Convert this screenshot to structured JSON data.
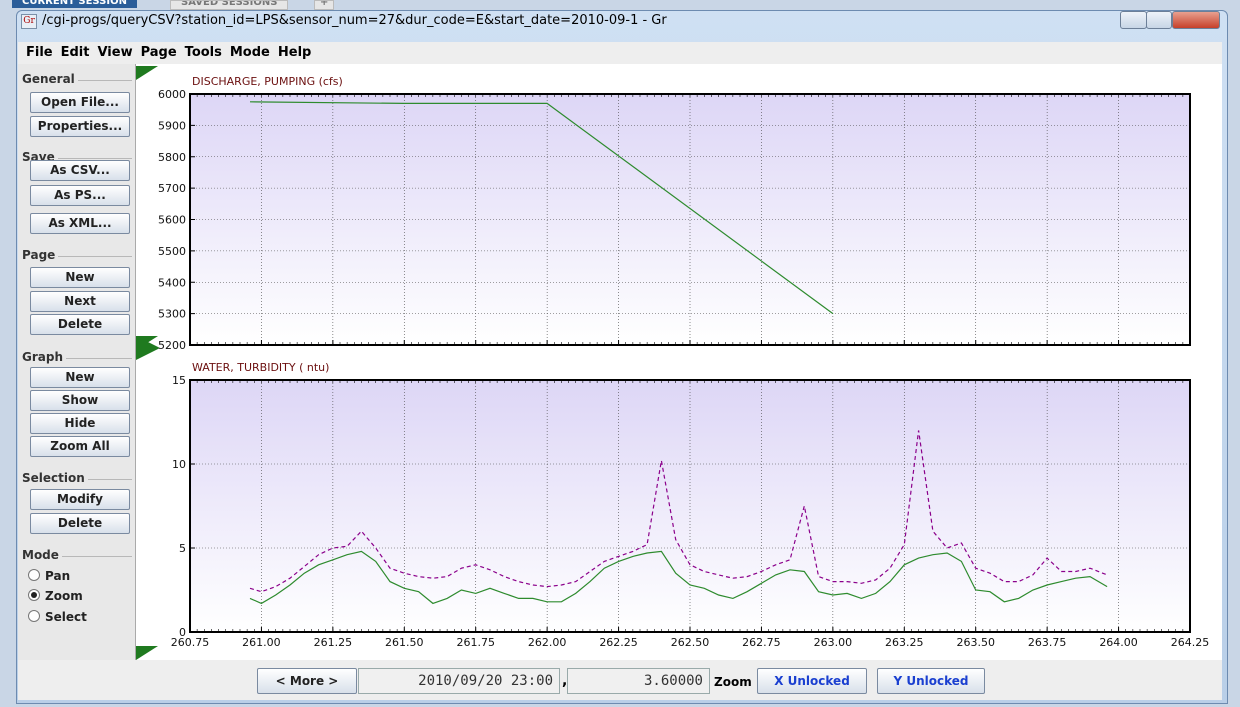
{
  "tabs": [
    "CURRENT SESSION",
    "SAVED SESSIONS",
    "+"
  ],
  "window": {
    "icon": "Gr",
    "title": "/cgi-progs/queryCSV?station_id=LPS&sensor_num=27&dur_code=E&start_date=2010-09-1 - Gr"
  },
  "menu": [
    "File",
    "Edit",
    "View",
    "Page",
    "Tools",
    "Mode",
    "Help"
  ],
  "sidebar": {
    "groups": [
      {
        "label": "General",
        "buttons": [
          "Open File...",
          "Properties..."
        ]
      },
      {
        "label": "Save",
        "buttons": [
          "As CSV...",
          "As PS...",
          "As XML..."
        ]
      },
      {
        "label": "Page",
        "buttons": [
          "New",
          "Next",
          "Delete"
        ]
      },
      {
        "label": "Graph",
        "buttons": [
          "New",
          "Show",
          "Hide",
          "Zoom All"
        ]
      },
      {
        "label": "Selection",
        "buttons": [
          "Modify",
          "Delete"
        ]
      }
    ],
    "mode": {
      "label": "Mode",
      "options": [
        "Pan",
        "Zoom",
        "Select"
      ],
      "selected": 1
    }
  },
  "bottom_bar": {
    "more": "< More >",
    "date": "2010/09/20 23:00",
    "separator": ",",
    "value": "3.60000",
    "mode": "Zoom",
    "x_lock": "X Unlocked",
    "y_lock": "Y Unlocked"
  },
  "chart_data": [
    {
      "type": "line",
      "title": "DISCHARGE, PUMPING (cfs)",
      "x": [
        260.96,
        261.5,
        262.0,
        263.0
      ],
      "series": [
        {
          "color": "#2e8b2e",
          "values": [
            5975,
            5970,
            5970,
            5300
          ]
        }
      ],
      "xlim": [
        260.75,
        264.25
      ],
      "xticks": [
        261,
        261.25,
        261.5,
        261.75,
        262,
        262.25,
        262.5,
        262.75,
        263,
        263.25,
        263.5,
        263.75,
        264
      ],
      "ylim": [
        5200,
        6000
      ],
      "yticks": [
        5200,
        5300,
        5400,
        5500,
        5600,
        5700,
        5800,
        5900,
        6000
      ],
      "grid": true
    },
    {
      "type": "line",
      "title": "WATER, TURBIDITY ( ntu)",
      "x": [
        260.96,
        261.0,
        261.05,
        261.1,
        261.15,
        261.2,
        261.25,
        261.3,
        261.35,
        261.4,
        261.45,
        261.5,
        261.55,
        261.6,
        261.65,
        261.7,
        261.75,
        261.8,
        261.85,
        261.9,
        261.95,
        262.0,
        262.05,
        262.1,
        262.15,
        262.2,
        262.25,
        262.3,
        262.35,
        262.4,
        262.45,
        262.5,
        262.55,
        262.6,
        262.65,
        262.7,
        262.75,
        262.8,
        262.85,
        262.9,
        262.95,
        263.0,
        263.05,
        263.1,
        263.15,
        263.2,
        263.25,
        263.3,
        263.35,
        263.4,
        263.45,
        263.5,
        263.55,
        263.6,
        263.65,
        263.7,
        263.75,
        263.8,
        263.85,
        263.9,
        263.96
      ],
      "series": [
        {
          "color": "#8b008b",
          "dashed": true,
          "values": [
            2.6,
            2.4,
            2.7,
            3.2,
            3.9,
            4.6,
            5.0,
            5.1,
            6.0,
            5.0,
            3.8,
            3.5,
            3.3,
            3.2,
            3.3,
            3.8,
            4.0,
            3.7,
            3.3,
            3.0,
            2.8,
            2.7,
            2.8,
            3.0,
            3.6,
            4.2,
            4.5,
            4.8,
            5.2,
            10.2,
            5.5,
            4.0,
            3.6,
            3.4,
            3.2,
            3.3,
            3.6,
            4.0,
            4.3,
            7.5,
            3.3,
            3.0,
            3.0,
            2.9,
            3.1,
            3.8,
            5.2,
            12.0,
            6.0,
            5.0,
            5.3,
            3.8,
            3.5,
            3.0,
            3.0,
            3.4,
            4.4,
            3.6,
            3.6,
            3.8,
            3.4
          ]
        },
        {
          "color": "#2e8b2e",
          "values": [
            2.0,
            1.7,
            2.2,
            2.8,
            3.5,
            4.0,
            4.3,
            4.6,
            4.8,
            4.2,
            3.0,
            2.6,
            2.4,
            1.7,
            2.0,
            2.5,
            2.3,
            2.6,
            2.3,
            2.0,
            2.0,
            1.8,
            1.8,
            2.3,
            3.0,
            3.8,
            4.2,
            4.5,
            4.7,
            4.8,
            3.5,
            2.8,
            2.6,
            2.2,
            2.0,
            2.4,
            2.9,
            3.4,
            3.7,
            3.6,
            2.4,
            2.2,
            2.3,
            2.0,
            2.3,
            3.0,
            4.0,
            4.4,
            4.6,
            4.7,
            4.2,
            2.5,
            2.4,
            1.8,
            2.0,
            2.5,
            2.8,
            3.0,
            3.2,
            3.3,
            2.7
          ]
        }
      ],
      "xlim": [
        260.75,
        264.25
      ],
      "xticks": [
        {
          "value": 260.75,
          "label": "260.75"
        },
        {
          "value": 261,
          "label": "261.00"
        },
        {
          "value": 261.25,
          "label": "261.25"
        },
        {
          "value": 261.5,
          "label": "261.50"
        },
        {
          "value": 261.75,
          "label": "261.75"
        },
        {
          "value": 262,
          "label": "262.00"
        },
        {
          "value": 262.25,
          "label": "262.25"
        },
        {
          "value": 262.5,
          "label": "262.50"
        },
        {
          "value": 262.75,
          "label": "262.75"
        },
        {
          "value": 263,
          "label": "263.00"
        },
        {
          "value": 263.25,
          "label": "263.25"
        },
        {
          "value": 263.5,
          "label": "263.50"
        },
        {
          "value": 263.75,
          "label": "263.75"
        },
        {
          "value": 264,
          "label": "264.00"
        },
        {
          "value": 264.25,
          "label": "264.25"
        }
      ],
      "ylim": [
        0,
        15
      ],
      "yticks": [
        0,
        5,
        10,
        15
      ],
      "grid": true
    }
  ]
}
